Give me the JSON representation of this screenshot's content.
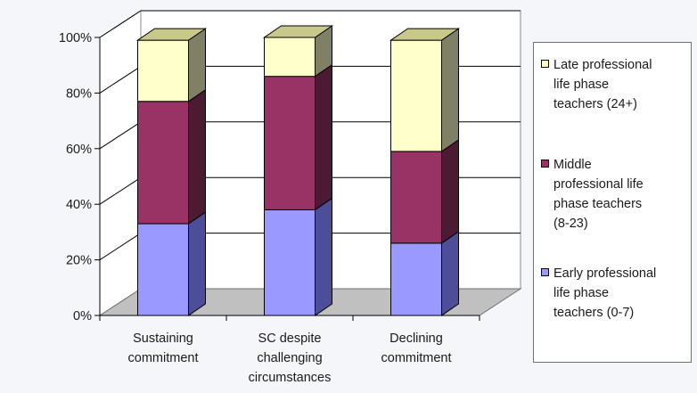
{
  "chart_data": {
    "type": "bar",
    "stacked": true,
    "percent_stacked": true,
    "three_d": true,
    "categories": [
      [
        "Sustaining",
        "commitment"
      ],
      [
        "SC despite",
        "challenging",
        "circumstances"
      ],
      [
        "Declining",
        "commitment"
      ]
    ],
    "series": [
      {
        "name": "Early professional life phase teachers (0-7)",
        "values": [
          33,
          38,
          26
        ],
        "color": "#9999ff",
        "side_color": "#4d4d99"
      },
      {
        "name": "Middle professional life phase teachers (8-23)",
        "values": [
          44,
          48,
          33
        ],
        "color": "#993366",
        "side_color": "#4d1a33"
      },
      {
        "name": "Late professional life phase teachers (24+)",
        "values": [
          22,
          14,
          40
        ],
        "color": "#ffffcc",
        "side_color": "#808066"
      }
    ],
    "yticks": [
      "0%",
      "20%",
      "40%",
      "60%",
      "80%",
      "100%"
    ],
    "ylim": [
      0,
      100
    ],
    "grid": true,
    "legend_position": "right"
  },
  "legend": [
    {
      "lines": [
        "Late professional",
        "life phase",
        "teachers (24+)"
      ],
      "color": "#ffffcc"
    },
    {
      "lines": [
        "Middle",
        "professional life",
        "phase teachers",
        "(8-23)"
      ],
      "color": "#993366"
    },
    {
      "lines": [
        "Early professional",
        "life phase",
        "teachers (0-7)"
      ],
      "color": "#9999ff"
    }
  ]
}
